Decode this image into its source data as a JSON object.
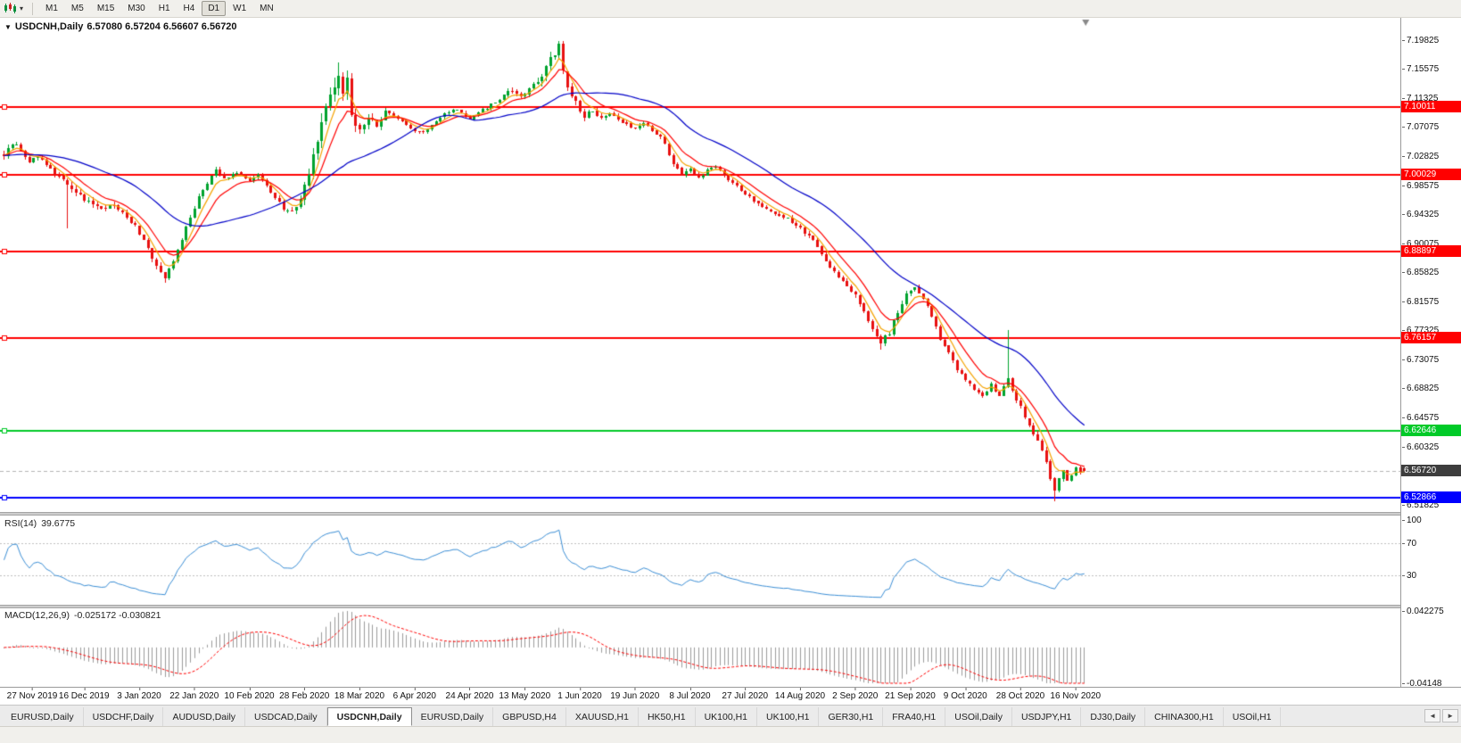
{
  "toolbar": {
    "chart_type_icon": "candlestick-chart",
    "dropdown_icon": "▾",
    "timeframes": [
      "M1",
      "M5",
      "M15",
      "M30",
      "H1",
      "H4",
      "D1",
      "W1",
      "MN"
    ],
    "active_timeframe": "D1"
  },
  "chart_header": {
    "collapse_icon": "▼",
    "title": "USDCNH,Daily",
    "ohlc": "6.57080 6.57204 6.56607 6.56720"
  },
  "indicators": {
    "rsi": {
      "label": "RSI(14)",
      "value": "39.6775",
      "axis_labels": [
        "100",
        "70",
        "30"
      ],
      "levels": [
        70,
        30
      ],
      "line_color": "#3c8fd6"
    },
    "macd": {
      "label": "MACD(12,26,9)",
      "values": "-0.025172 -0.030821",
      "axis_top_label": "0.042275",
      "axis_bottom_label": "-0.04148",
      "histogram_color": "#9c9c9c",
      "signal_color": "#ff0000"
    }
  },
  "levels": [
    {
      "price": 7.10011,
      "label": "7.10011",
      "color": "#ff0000"
    },
    {
      "price": 7.00029,
      "label": "7.00029",
      "color": "#ff0000"
    },
    {
      "price": 6.88897,
      "label": "6.88897",
      "color": "#ff0000"
    },
    {
      "price": 6.76157,
      "label": "6.76157",
      "color": "#ff0000"
    },
    {
      "price": 6.62646,
      "label": "6.62646",
      "color": "#00ca28"
    },
    {
      "price": 6.52866,
      "label": "6.52866",
      "color": "#0000ff"
    }
  ],
  "current_price": {
    "value": "6.56720",
    "badge_bg": "#3d3d3d",
    "line_color": "#b4b4b4"
  },
  "chart_data": {
    "type": "candlestick",
    "symbol": "USDCNH",
    "period": "Daily",
    "bar_count": 256,
    "up_color": "#00a32e",
    "down_color": "#e81010",
    "y_axis": {
      "top": 7.2306,
      "bottom": 6.5061,
      "labels": [
        "7.19825",
        "7.15575",
        "7.11325",
        "7.07075",
        "7.02825",
        "6.98575",
        "6.94325",
        "6.90075",
        "6.85825",
        "6.81575",
        "6.77325",
        "6.73075",
        "6.68825",
        "6.64575",
        "6.60325",
        "6.51825"
      ]
    },
    "x_axis": {
      "labels": [
        "27 Nov 2019",
        "16 Dec 2019",
        "3 Jan 2020",
        "22 Jan 2020",
        "10 Feb 2020",
        "28 Feb 2020",
        "18 Mar 2020",
        "6 Apr 2020",
        "24 Apr 2020",
        "13 May 2020",
        "1 Jun 2020",
        "19 Jun 2020",
        "8 Jul 2020",
        "27 Jul 2020",
        "14 Aug 2020",
        "2 Sep 2020",
        "21 Sep 2020",
        "9 Oct 2020",
        "28 Oct 2020",
        "16 Nov 2020"
      ],
      "bars_per_label": 13,
      "first_label_bar": 6
    },
    "price_anchors": [
      [
        0,
        7.03
      ],
      [
        2,
        7.048
      ],
      [
        4,
        7.038
      ],
      [
        6,
        7.022
      ],
      [
        8,
        7.028
      ],
      [
        11,
        7.008
      ],
      [
        13,
        6.998
      ],
      [
        15,
        6.985
      ],
      [
        17,
        6.972
      ],
      [
        20,
        6.962
      ],
      [
        23,
        6.952
      ],
      [
        26,
        6.958
      ],
      [
        28,
        6.945
      ],
      [
        31,
        6.925
      ],
      [
        34,
        6.892
      ],
      [
        36,
        6.868
      ],
      [
        38,
        6.852
      ],
      [
        40,
        6.872
      ],
      [
        42,
        6.905
      ],
      [
        44,
        6.94
      ],
      [
        46,
        6.968
      ],
      [
        48,
        6.988
      ],
      [
        50,
        7.008
      ],
      [
        52,
        6.996
      ],
      [
        55,
        7.002
      ],
      [
        58,
        6.992
      ],
      [
        60,
        6.999
      ],
      [
        62,
        6.985
      ],
      [
        64,
        6.968
      ],
      [
        66,
        6.952
      ],
      [
        68,
        6.948
      ],
      [
        70,
        6.962
      ],
      [
        72,
        7.0
      ],
      [
        74,
        7.052
      ],
      [
        76,
        7.095
      ],
      [
        78,
        7.128
      ],
      [
        79,
        7.152
      ],
      [
        80,
        7.112
      ],
      [
        81,
        7.138
      ],
      [
        82,
        7.095
      ],
      [
        84,
        7.062
      ],
      [
        86,
        7.088
      ],
      [
        88,
        7.072
      ],
      [
        90,
        7.094
      ],
      [
        93,
        7.082
      ],
      [
        96,
        7.068
      ],
      [
        99,
        7.064
      ],
      [
        102,
        7.08
      ],
      [
        104,
        7.09
      ],
      [
        107,
        7.096
      ],
      [
        110,
        7.082
      ],
      [
        113,
        7.096
      ],
      [
        115,
        7.104
      ],
      [
        117,
        7.112
      ],
      [
        120,
        7.126
      ],
      [
        122,
        7.114
      ],
      [
        124,
        7.13
      ],
      [
        126,
        7.14
      ],
      [
        128,
        7.158
      ],
      [
        130,
        7.178
      ],
      [
        131,
        7.188
      ],
      [
        132,
        7.158
      ],
      [
        133,
        7.128
      ],
      [
        135,
        7.108
      ],
      [
        137,
        7.086
      ],
      [
        139,
        7.096
      ],
      [
        141,
        7.082
      ],
      [
        143,
        7.09
      ],
      [
        146,
        7.076
      ],
      [
        149,
        7.07
      ],
      [
        151,
        7.076
      ],
      [
        154,
        7.062
      ],
      [
        156,
        7.046
      ],
      [
        158,
        7.016
      ],
      [
        160,
        7.002
      ],
      [
        162,
        7.012
      ],
      [
        164,
        6.996
      ],
      [
        166,
        7.006
      ],
      [
        168,
        7.012
      ],
      [
        170,
        7.0
      ],
      [
        173,
        6.985
      ],
      [
        176,
        6.968
      ],
      [
        179,
        6.955
      ],
      [
        182,
        6.942
      ],
      [
        185,
        6.936
      ],
      [
        188,
        6.922
      ],
      [
        191,
        6.906
      ],
      [
        193,
        6.886
      ],
      [
        195,
        6.866
      ],
      [
        197,
        6.848
      ],
      [
        199,
        6.838
      ],
      [
        201,
        6.824
      ],
      [
        203,
        6.798
      ],
      [
        205,
        6.776
      ],
      [
        207,
        6.757
      ],
      [
        209,
        6.77
      ],
      [
        211,
        6.8
      ],
      [
        213,
        6.828
      ],
      [
        215,
        6.836
      ],
      [
        217,
        6.822
      ],
      [
        219,
        6.792
      ],
      [
        221,
        6.762
      ],
      [
        223,
        6.738
      ],
      [
        225,
        6.716
      ],
      [
        227,
        6.7
      ],
      [
        229,
        6.688
      ],
      [
        231,
        6.676
      ],
      [
        233,
        6.694
      ],
      [
        235,
        6.678
      ],
      [
        237,
        6.7
      ],
      [
        239,
        6.672
      ],
      [
        241,
        6.648
      ],
      [
        243,
        6.622
      ],
      [
        245,
        6.598
      ],
      [
        246,
        6.582
      ],
      [
        247,
        6.556
      ],
      [
        248,
        6.538
      ],
      [
        249,
        6.556
      ],
      [
        250,
        6.566
      ],
      [
        251,
        6.552
      ],
      [
        252,
        6.56
      ],
      [
        253,
        6.572
      ],
      [
        254,
        6.566
      ],
      [
        255,
        6.5672
      ]
    ],
    "volatility_anchors": [
      [
        0,
        0.009
      ],
      [
        10,
        0.008
      ],
      [
        15,
        0.013
      ],
      [
        25,
        0.009
      ],
      [
        33,
        0.011
      ],
      [
        39,
        0.009
      ],
      [
        45,
        0.008
      ],
      [
        52,
        0.006
      ],
      [
        60,
        0.007
      ],
      [
        68,
        0.01
      ],
      [
        73,
        0.02
      ],
      [
        78,
        0.03
      ],
      [
        82,
        0.022
      ],
      [
        86,
        0.013
      ],
      [
        92,
        0.008
      ],
      [
        100,
        0.006
      ],
      [
        108,
        0.006
      ],
      [
        116,
        0.007
      ],
      [
        124,
        0.009
      ],
      [
        129,
        0.016
      ],
      [
        133,
        0.013
      ],
      [
        138,
        0.009
      ],
      [
        145,
        0.007
      ],
      [
        152,
        0.006
      ],
      [
        158,
        0.008
      ],
      [
        165,
        0.007
      ],
      [
        172,
        0.006
      ],
      [
        180,
        0.007
      ],
      [
        188,
        0.007
      ],
      [
        196,
        0.009
      ],
      [
        204,
        0.01
      ],
      [
        209,
        0.009
      ],
      [
        216,
        0.008
      ],
      [
        223,
        0.008
      ],
      [
        230,
        0.008
      ],
      [
        236,
        0.009
      ],
      [
        240,
        0.009
      ],
      [
        244,
        0.009
      ],
      [
        248,
        0.011
      ],
      [
        252,
        0.006
      ],
      [
        255,
        0.005
      ]
    ],
    "wick_events": [
      {
        "index": 15,
        "low": 6.923
      },
      {
        "index": 38,
        "low": 6.8435
      },
      {
        "index": 79,
        "high": 7.1655
      },
      {
        "index": 131,
        "high": 7.1965
      },
      {
        "index": 207,
        "low": 6.7445
      },
      {
        "index": 237,
        "high": 6.7733
      },
      {
        "index": 248,
        "low": 6.5235
      }
    ],
    "last_bar": {
      "open": 6.5708,
      "high": 6.57204,
      "low": 6.56607,
      "close": 6.5672
    },
    "moving_averages": [
      {
        "period": 5,
        "type": "ema",
        "color": "#f5a300"
      },
      {
        "period": 10,
        "type": "ema",
        "color": "#ff0000"
      },
      {
        "period": 30,
        "type": "sma",
        "color": "#0000c8"
      }
    ],
    "rsi_period": 14,
    "macd": {
      "fast": 12,
      "slow": 26,
      "signal": 9,
      "range": [
        -0.04148,
        0.042275
      ]
    }
  },
  "tabs": {
    "items": [
      "EURUSD,Daily",
      "USDCHF,Daily",
      "AUDUSD,Daily",
      "USDCAD,Daily",
      "USDCNH,Daily",
      "EURUSD,Daily",
      "GBPUSD,H4",
      "XAUUSD,H1",
      "HK50,H1",
      "UK100,H1",
      "UK100,H1",
      "GER30,H1",
      "FRA40,H1",
      "USOil,Daily",
      "USDJPY,H1",
      "DJ30,Daily",
      "CHINA300,H1",
      "USOil,H1"
    ],
    "active_index": 4,
    "scroll_left_icon": "◄",
    "scroll_right_icon": "►"
  }
}
